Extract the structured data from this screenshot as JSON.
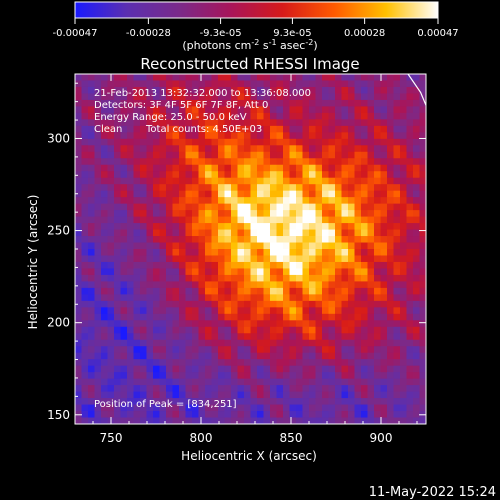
{
  "colorbar": {
    "tick_labels": [
      "-0.00047",
      "-0.00028",
      "-9.3e-05",
      "9.3e-05",
      "0.00028",
      "0.00047"
    ],
    "ticks": [
      -0.00047,
      -0.00028,
      -9.3e-05,
      9.3e-05,
      0.00028,
      0.00047
    ],
    "range": [
      -0.00047,
      0.00047
    ],
    "unit_base": "(photons cm",
    "unit_sup1": "-2",
    "unit_mid": " s",
    "unit_sup2": "-1",
    "unit_end": " asec",
    "unit_sup3": "-2",
    "unit_close": ")",
    "colors": [
      "#1a1aff",
      "#5b2fb0",
      "#7a2a8a",
      "#a8155a",
      "#d61a1a",
      "#ff5a00",
      "#ffc000",
      "#ffffff"
    ]
  },
  "chart_data": {
    "type": "heatmap",
    "title": "Reconstructed RHESSI Image",
    "xlabel": "Heliocentric X (arcsec)",
    "ylabel": "Heliocentric Y (arcsec)",
    "xlim": [
      730,
      925
    ],
    "ylim": [
      145,
      335
    ],
    "x_ticks": [
      750,
      800,
      850,
      900
    ],
    "y_ticks": [
      150,
      200,
      250,
      300
    ],
    "x_tick_labels": [
      "750",
      "800",
      "850",
      "900"
    ],
    "y_tick_labels": [
      "150",
      "200",
      "250",
      "300"
    ],
    "peak": [
      834,
      251
    ],
    "limb_points": [
      [
        915,
        335
      ],
      [
        922,
        325
      ],
      [
        925,
        318
      ]
    ]
  },
  "annotations": {
    "line1": "21-Feb-2013 13:32:32.000 to 13:36:08.000",
    "line2": "Detectors: 3F 4F 5F 6F 7F 8F, Att 0",
    "line3": "Energy Range: 25.0 - 50.0 keV",
    "line4a": "Clean",
    "line4b": "Total counts: 4.50E+03",
    "peak_label": "Position of Peak = [834,251]"
  },
  "footer": {
    "date": "11-May-2022 15:24"
  }
}
